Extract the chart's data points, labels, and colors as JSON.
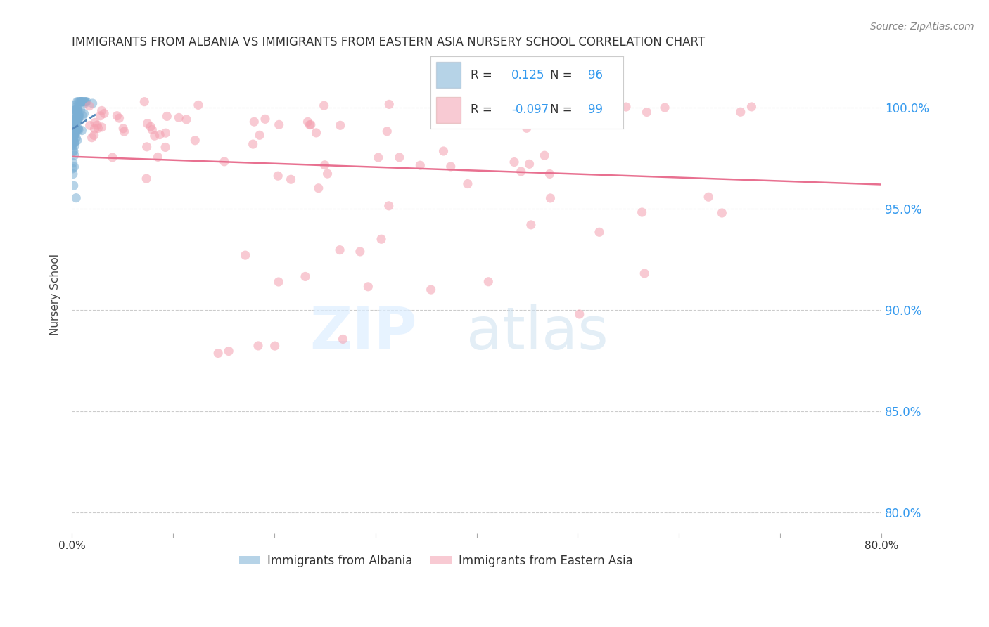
{
  "title": "IMMIGRANTS FROM ALBANIA VS IMMIGRANTS FROM EASTERN ASIA NURSERY SCHOOL CORRELATION CHART",
  "source": "Source: ZipAtlas.com",
  "ylabel": "Nursery School",
  "ytick_labels": [
    "100.0%",
    "95.0%",
    "90.0%",
    "85.0%",
    "80.0%"
  ],
  "ytick_values": [
    1.0,
    0.95,
    0.9,
    0.85,
    0.8
  ],
  "xlim": [
    0.0,
    0.8
  ],
  "ylim": [
    0.79,
    1.025
  ],
  "legend_r_blue": "0.125",
  "legend_n_blue": "96",
  "legend_r_pink": "-0.097",
  "legend_n_pink": "99",
  "blue_color": "#7bafd4",
  "pink_color": "#f4a0b0",
  "trendline_blue_color": "#5588bb",
  "trendline_pink_color": "#e87090",
  "grid_color": "#cccccc",
  "title_color": "#333333",
  "source_color": "#888888",
  "right_tick_color": "#3399ee",
  "bottom_tick_color": "#333333"
}
